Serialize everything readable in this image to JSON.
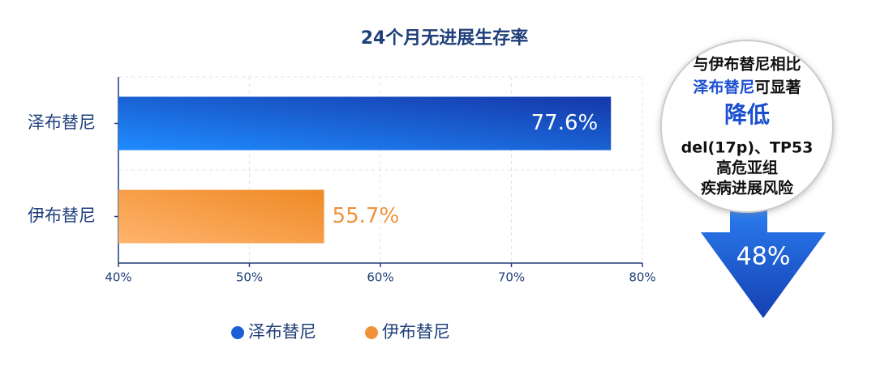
{
  "chart_data": {
    "type": "bar",
    "orientation": "horizontal",
    "title": "24个月无进展生存率",
    "categories": [
      "泽布替尼",
      "伊布替尼"
    ],
    "values": [
      77.6,
      55.7
    ],
    "value_labels": [
      "77.6%",
      "55.7%"
    ],
    "colors": [
      "#1a5fd6",
      "#f0923a"
    ],
    "xlim": [
      40,
      80
    ],
    "xticks": [
      {
        "value": 40,
        "label": "40%"
      },
      {
        "value": 50,
        "label": "50%"
      },
      {
        "value": 60,
        "label": "60%"
      },
      {
        "value": 70,
        "label": "70%"
      },
      {
        "value": 80,
        "label": "80%"
      }
    ],
    "grid": true,
    "legend": "bottom"
  },
  "callout": {
    "lines": [
      "与伊布替尼相比",
      "泽布替尼",
      "可显著",
      "降低",
      "del(17p)、TP53",
      "高危亚组",
      "疾病进展风险"
    ],
    "reduction": "48%"
  }
}
